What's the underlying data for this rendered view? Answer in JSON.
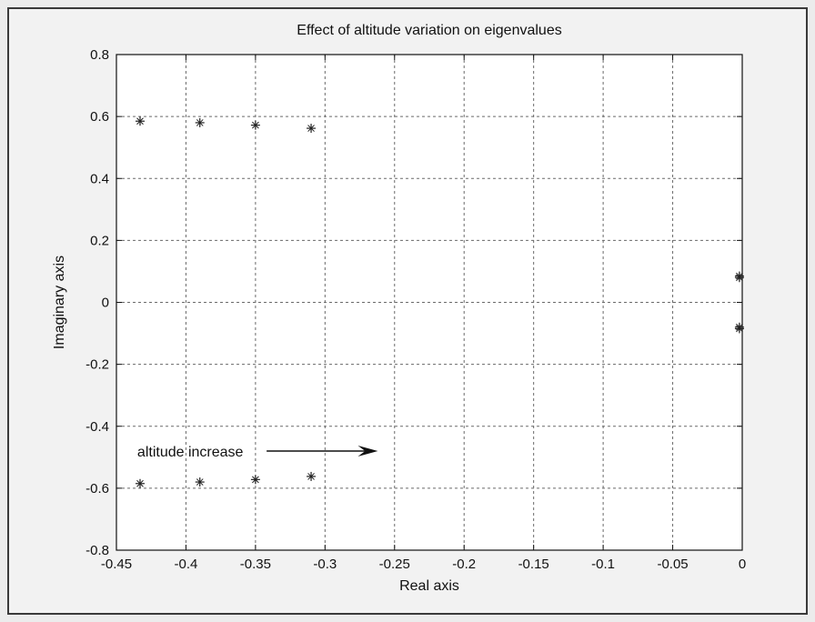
{
  "chart_data": {
    "type": "scatter",
    "title": "Effect of altitude variation on eigenvalues",
    "xlabel": "Real axis",
    "ylabel": "Imaginary axis",
    "xlim": [
      -0.45,
      0
    ],
    "ylim": [
      -0.8,
      0.8
    ],
    "xticks": [
      -0.45,
      -0.4,
      -0.35,
      -0.3,
      -0.25,
      -0.2,
      -0.15,
      -0.1,
      -0.05,
      0
    ],
    "xtick_labels": [
      "-0.45",
      "-0.4",
      "-0.35",
      "-0.3",
      "-0.25",
      "-0.2",
      "-0.15",
      "-0.1",
      "-0.05",
      "0"
    ],
    "yticks": [
      -0.8,
      -0.6,
      -0.4,
      -0.2,
      0,
      0.2,
      0.4,
      0.6,
      0.8
    ],
    "ytick_labels": [
      "-0.8",
      "-0.6",
      "-0.4",
      "-0.2",
      "0",
      "0.2",
      "0.4",
      "0.6",
      "0.8"
    ],
    "grid": true,
    "marker": "*",
    "series": [
      {
        "points": [
          [
            -0.433,
            0.585
          ],
          [
            -0.39,
            0.58
          ],
          [
            -0.35,
            0.572
          ],
          [
            -0.31,
            0.562
          ],
          [
            -0.433,
            -0.585
          ],
          [
            -0.39,
            -0.58
          ],
          [
            -0.35,
            -0.572
          ],
          [
            -0.31,
            -0.562
          ],
          [
            -0.002,
            0.085
          ],
          [
            -0.002,
            0.08
          ],
          [
            -0.002,
            -0.08
          ],
          [
            -0.002,
            -0.085
          ]
        ]
      }
    ],
    "annotation": {
      "text": "altitude increase",
      "at": [
        -0.435,
        -0.48
      ],
      "arrow_from": [
        -0.342,
        -0.48
      ],
      "arrow_to": [
        -0.262,
        -0.48
      ]
    },
    "colors": {
      "marker": "#222222",
      "grid": "#6a6a6a",
      "axes": "#111111",
      "background": "#ffffff"
    }
  }
}
